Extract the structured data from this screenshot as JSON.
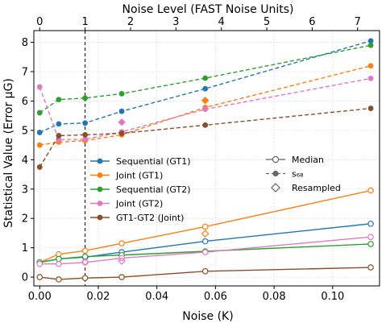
{
  "chart_data": {
    "type": "line",
    "xlabel": "Noise (K)",
    "ylabel": "Statistical Value (Error μG)",
    "x2label": "Noise Level (FAST Noise Units)",
    "xlim": [
      -0.002,
      0.116
    ],
    "ylim": [
      -0.3,
      8.4
    ],
    "x_ticks": [
      0.0,
      0.02,
      0.04,
      0.06,
      0.08,
      0.1
    ],
    "x_tick_labels": [
      "0.00",
      "0.02",
      "0.04",
      "0.06",
      "0.08",
      "0.10"
    ],
    "y_ticks": [
      0,
      1,
      2,
      3,
      4,
      5,
      6,
      7,
      8
    ],
    "y_tick_labels": [
      "0",
      "1",
      "2",
      "3",
      "4",
      "5",
      "6",
      "7",
      "8"
    ],
    "x2_ticks": [
      0,
      1,
      2,
      3,
      4,
      5,
      6,
      7
    ],
    "x2_tick_labels": [
      "0",
      "1",
      "2",
      "3",
      "4",
      "5",
      "6",
      "7"
    ],
    "x2_scale_k_per_unit": 0.0155,
    "vline_x": 0.0155,
    "grid": true,
    "x": [
      0.0,
      0.0065,
      0.0155,
      0.028,
      0.0565,
      0.113
    ],
    "series": [
      {
        "name": "Sequential (GT1)",
        "color": "#1f77b4",
        "median": [
          0.5,
          0.62,
          0.68,
          0.85,
          1.22,
          1.82
        ],
        "s68": [
          4.93,
          5.22,
          5.25,
          5.65,
          6.42,
          8.05
        ],
        "resampled": [
          [
            0.0155,
            0.68
          ]
        ]
      },
      {
        "name": "Joint (GT1)",
        "color": "#ff7f0e",
        "median": [
          0.5,
          0.78,
          0.9,
          1.15,
          1.72,
          2.95
        ],
        "s68": [
          4.5,
          4.6,
          4.65,
          4.85,
          5.78,
          7.2
        ],
        "resampled": [
          [
            0.0565,
            1.48
          ]
        ],
        "resampled_s68": [
          [
            0.0565,
            6.02
          ]
        ]
      },
      {
        "name": "Sequential (GT2)",
        "color": "#2ca02c",
        "median": [
          0.5,
          0.62,
          0.7,
          0.75,
          0.88,
          1.13
        ],
        "s68": [
          5.6,
          6.05,
          6.1,
          6.25,
          6.78,
          7.9
        ],
        "resampled": []
      },
      {
        "name": "Joint (GT2)",
        "color": "#e377c2",
        "median": [
          0.45,
          0.45,
          0.5,
          0.65,
          0.85,
          1.37
        ],
        "s68": [
          6.48,
          4.68,
          4.7,
          4.95,
          5.72,
          6.77
        ],
        "resampled": [
          [
            0.0155,
            0.52
          ],
          [
            0.028,
            0.55
          ]
        ],
        "resampled_s68": [
          [
            0.028,
            5.28
          ]
        ]
      },
      {
        "name": "GT1-GT2 (Joint)",
        "color": "#8c4e2a",
        "median": [
          0.0,
          -0.08,
          -0.03,
          0.0,
          0.2,
          0.33
        ],
        "s68": [
          3.75,
          4.82,
          4.85,
          4.9,
          5.18,
          5.75
        ],
        "resampled": []
      }
    ],
    "legend_series": {
      "placement": "center-left",
      "entries": [
        "Sequential (GT1)",
        "Joint (GT1)",
        "Sequential (GT2)",
        "Joint (GT2)",
        "GT1-GT2 (Joint)"
      ]
    },
    "legend_styles": {
      "placement": "center-right",
      "entries": [
        {
          "label": "Median",
          "style": "solid-open-circle"
        },
        {
          "label": "s₆₈",
          "style": "dashed-filled-circle"
        },
        {
          "label": "Resampled",
          "style": "open-diamond"
        }
      ]
    }
  }
}
